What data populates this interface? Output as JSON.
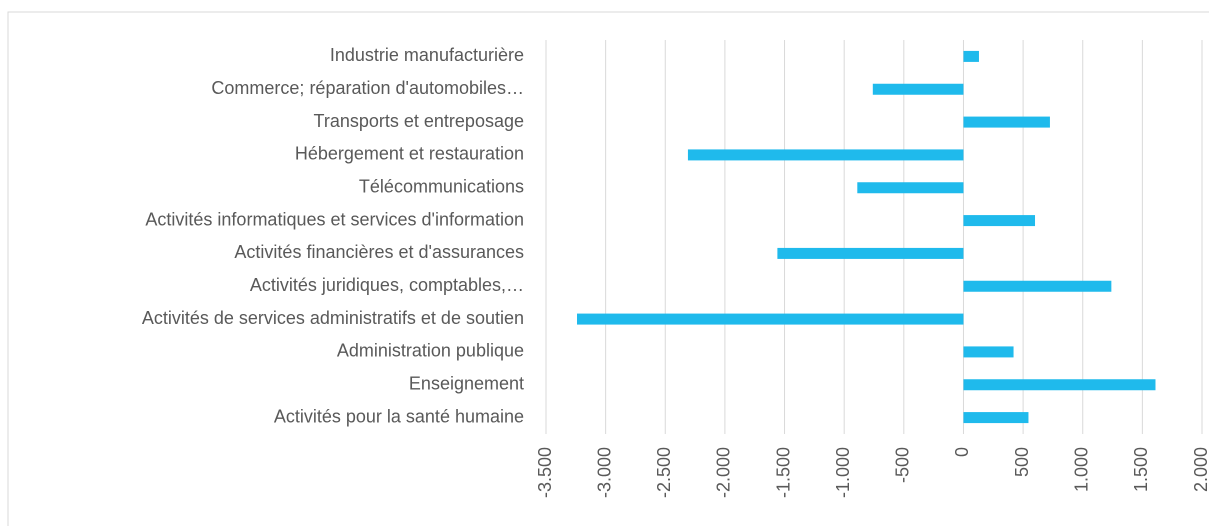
{
  "chart_data": {
    "type": "barh",
    "categories": [
      "Industrie manufacturière",
      "Commerce; réparation d'automobiles…",
      "Transports et entreposage",
      "Hébergement et restauration",
      "Télécommunications",
      "Activités informatiques et services d'information",
      "Activités financières et d'assurances",
      "Activités juridiques, comptables,…",
      "Activités de services administratifs et de soutien",
      "Administration publique",
      "Enseignement",
      "Activités pour la santé humaine"
    ],
    "values": [
      130,
      -760,
      725,
      -2310,
      -890,
      600,
      -1560,
      1240,
      -3240,
      420,
      1610,
      545
    ],
    "color": "#1fbaec",
    "xlim": [
      -3500,
      2000
    ],
    "xticks": [
      {
        "value": -3500,
        "label": "-3.500"
      },
      {
        "value": -3000,
        "label": "-3.000"
      },
      {
        "value": -2500,
        "label": "-2.500"
      },
      {
        "value": -2000,
        "label": "-2.000"
      },
      {
        "value": -1500,
        "label": "-1.500"
      },
      {
        "value": -1000,
        "label": "-1.000"
      },
      -500,
      0,
      500,
      {
        "value": 1000,
        "label": "1.000"
      },
      {
        "value": 1500,
        "label": "1.500"
      },
      {
        "value": 2000,
        "label": "2.000"
      }
    ],
    "grid": true
  }
}
